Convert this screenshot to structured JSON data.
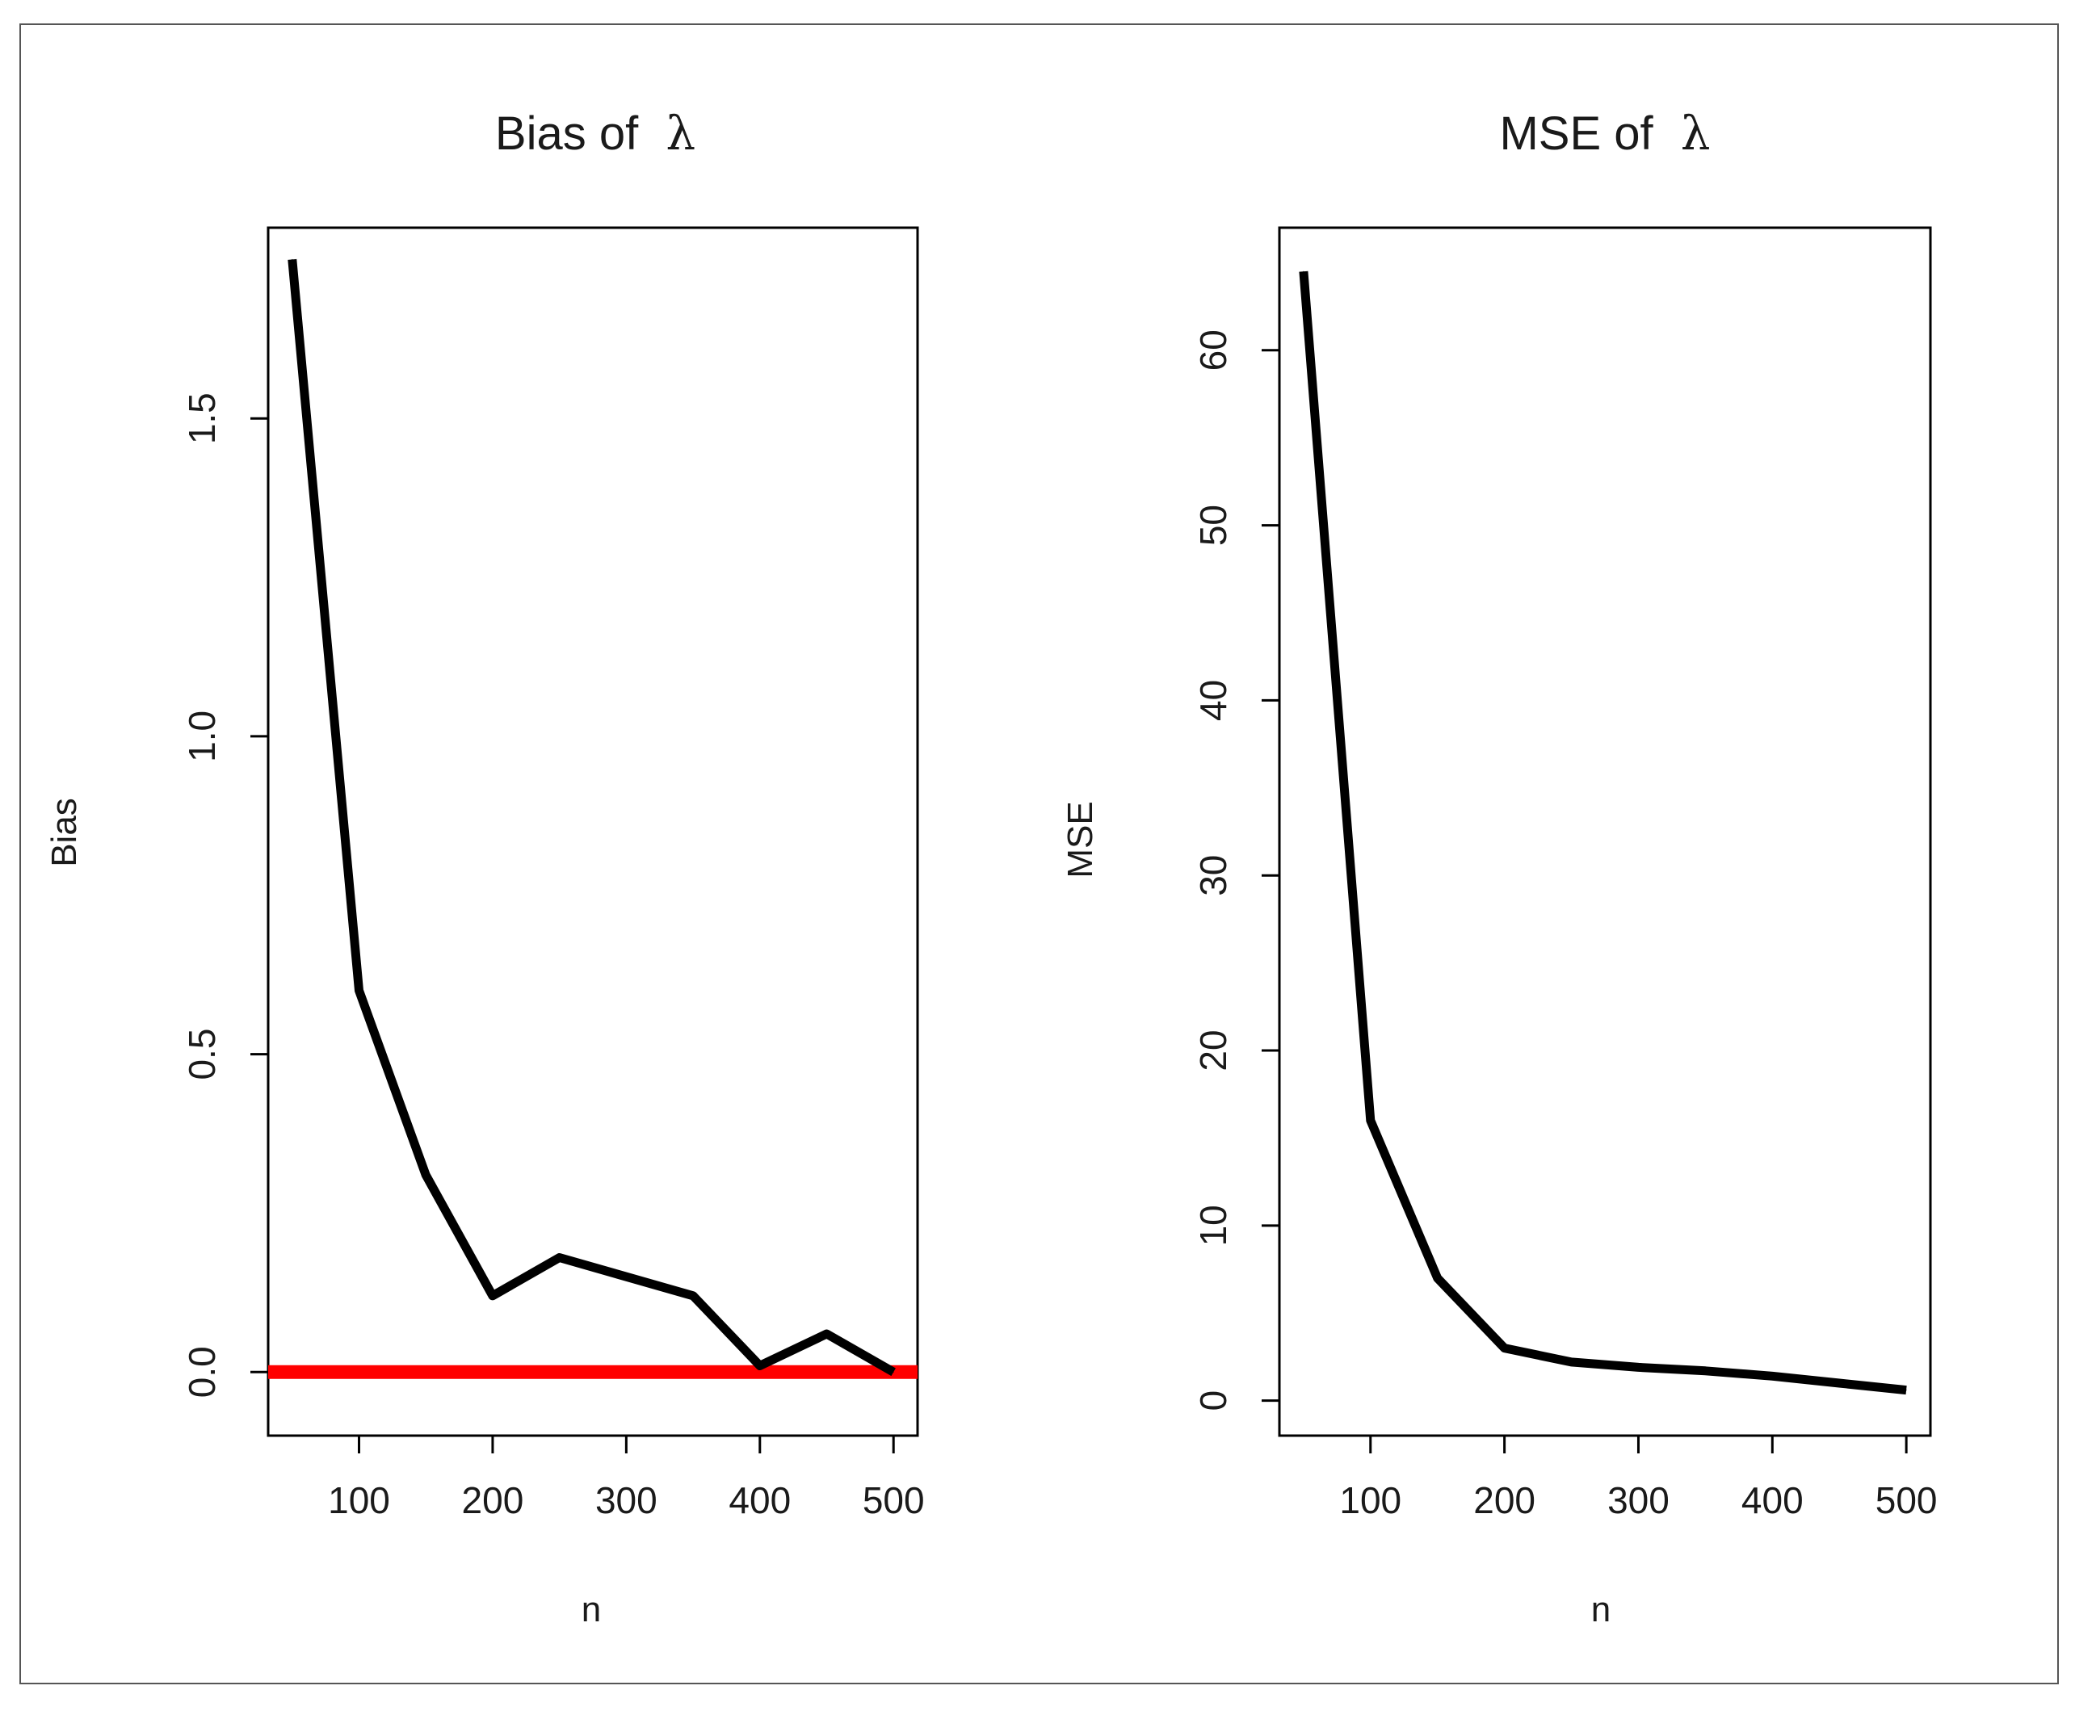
{
  "colors": {
    "line": "#000000",
    "reference": "#ff0000",
    "frame": "#555555"
  },
  "chart_data": [
    {
      "type": "line",
      "title": "Bias of λ",
      "title_text": "Bias of",
      "title_symbol": "λ",
      "xlabel": "n",
      "ylabel": "Bias",
      "xlim": [
        32,
        518
      ],
      "ylim": [
        -0.1,
        1.8
      ],
      "xticks": [
        100,
        200,
        300,
        400,
        500
      ],
      "yticks": [
        0.0,
        0.5,
        1.0,
        1.5
      ],
      "ytick_labels": [
        "0.0",
        "0.5",
        "1.0",
        "1.5"
      ],
      "grid": false,
      "x": [
        50,
        100,
        150,
        200,
        250,
        300,
        350,
        400,
        450,
        500
      ],
      "series": [
        {
          "name": "Bias",
          "color": "#000000",
          "values": [
            1.75,
            0.6,
            0.31,
            0.12,
            0.18,
            0.15,
            0.12,
            0.01,
            0.06,
            0.0
          ]
        }
      ],
      "reference_line": {
        "y": 0.0,
        "color": "#ff0000"
      }
    },
    {
      "type": "line",
      "title": "MSE of λ",
      "title_text": "MSE of",
      "title_symbol": "λ",
      "xlabel": "n",
      "ylabel": "MSE",
      "xlim": [
        32,
        518
      ],
      "ylim": [
        -2,
        67
      ],
      "xticks": [
        100,
        200,
        300,
        400,
        500
      ],
      "yticks": [
        0,
        10,
        20,
        30,
        40,
        50,
        60
      ],
      "ytick_labels": [
        "0",
        "10",
        "20",
        "30",
        "40",
        "50",
        "60"
      ],
      "grid": false,
      "x": [
        50,
        100,
        150,
        200,
        250,
        300,
        350,
        400,
        450,
        500
      ],
      "series": [
        {
          "name": "MSE",
          "color": "#000000",
          "values": [
            64.5,
            16.0,
            7.0,
            3.0,
            2.2,
            1.9,
            1.7,
            1.4,
            1.0,
            0.6
          ]
        }
      ]
    }
  ]
}
